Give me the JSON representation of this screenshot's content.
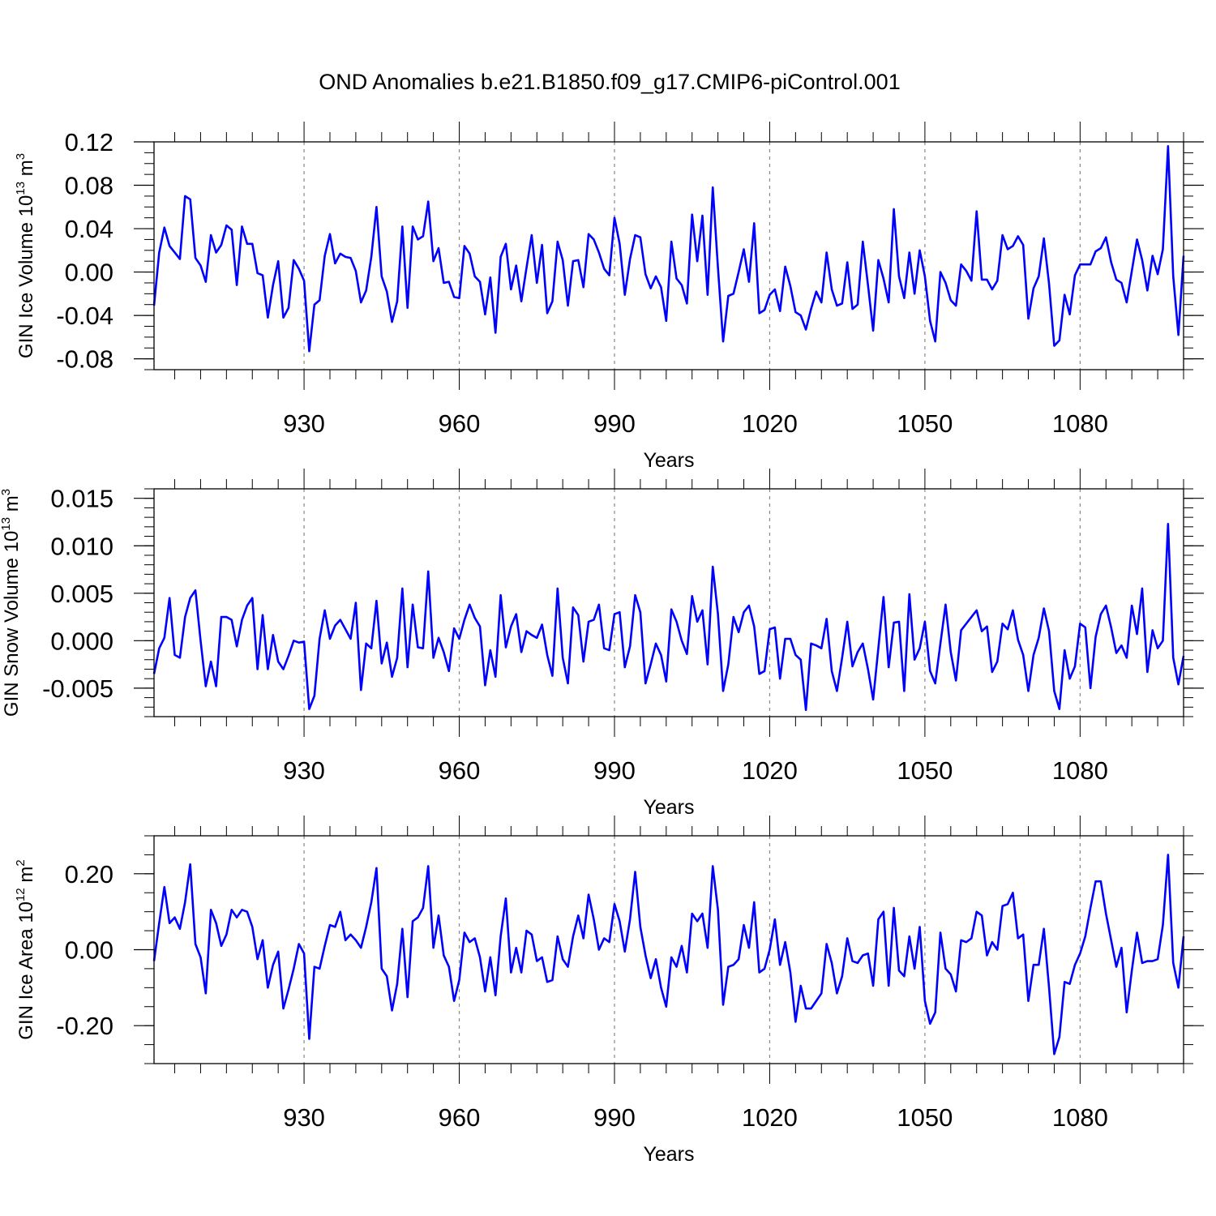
{
  "title": "OND Anomalies b.e21.B1850.f09_g17.CMIP6-piControl.001",
  "colors": {
    "line": "#0000ff",
    "grid": "#888888",
    "axes": "#000000"
  },
  "chart_data": [
    {
      "type": "line",
      "title": "OND Anomalies b.e21.B1850.f09_g17.CMIP6-piControl.001",
      "xlabel": "Years",
      "ylabel": {
        "main": "GIN Ice Volume 10",
        "sup": "13",
        "unit": " m",
        "unit_sup": "3"
      },
      "x_start": 901,
      "xlim": [
        901,
        1100
      ],
      "ylim": [
        -0.09,
        0.12
      ],
      "xticks": [
        930,
        960,
        990,
        1020,
        1050,
        1080
      ],
      "xtick_labels": [
        "930",
        "960",
        "990",
        "1020",
        "1050",
        "1080"
      ],
      "yticks": [
        -0.08,
        -0.04,
        0.0,
        0.04,
        0.08,
        0.12
      ],
      "ytick_labels": [
        "-0.08",
        "-0.04",
        "0.00",
        "0.04",
        "0.08",
        "0.12"
      ],
      "yminor": 0.01,
      "values": [
        -0.031,
        0.018,
        0.041,
        0.024,
        0.018,
        0.012,
        0.07,
        0.067,
        0.013,
        0.006,
        -0.009,
        0.034,
        0.018,
        0.025,
        0.043,
        0.039,
        -0.012,
        0.042,
        0.026,
        0.026,
        -0.001,
        -0.003,
        -0.042,
        -0.012,
        0.01,
        -0.042,
        -0.033,
        0.011,
        0.003,
        -0.008,
        -0.073,
        -0.03,
        -0.026,
        0.015,
        0.035,
        0.008,
        0.017,
        0.014,
        0.013,
        0.001,
        -0.028,
        -0.017,
        0.014,
        0.06,
        -0.004,
        -0.018,
        -0.046,
        -0.027,
        0.042,
        -0.033,
        0.042,
        0.03,
        0.033,
        0.065,
        0.01,
        0.022,
        -0.01,
        -0.009,
        -0.023,
        -0.024,
        0.024,
        0.017,
        -0.004,
        -0.009,
        -0.039,
        -0.005,
        -0.056,
        0.014,
        0.026,
        -0.016,
        0.006,
        -0.027,
        0.004,
        0.034,
        -0.01,
        0.025,
        -0.038,
        -0.027,
        0.028,
        0.011,
        -0.031,
        0.01,
        0.011,
        -0.014,
        0.035,
        0.03,
        0.018,
        0.003,
        -0.003,
        0.05,
        0.026,
        -0.021,
        0.012,
        0.034,
        0.032,
        -0.002,
        -0.015,
        -0.004,
        -0.014,
        -0.045,
        0.028,
        -0.006,
        -0.012,
        -0.029,
        0.053,
        0.01,
        0.052,
        -0.021,
        0.078,
        0.004,
        -0.064,
        -0.022,
        -0.02,
        0.0,
        0.021,
        -0.009,
        0.045,
        -0.038,
        -0.035,
        -0.021,
        -0.016,
        -0.036,
        0.005,
        -0.013,
        -0.037,
        -0.04,
        -0.053,
        -0.034,
        -0.018,
        -0.028,
        0.018,
        -0.016,
        -0.031,
        -0.029,
        0.009,
        -0.034,
        -0.03,
        0.028,
        -0.012,
        -0.054,
        0.011,
        -0.006,
        -0.028,
        0.058,
        -0.004,
        -0.024,
        0.018,
        -0.02,
        0.02,
        -0.004,
        -0.045,
        -0.064,
        0.0,
        -0.01,
        -0.026,
        -0.031,
        0.007,
        0.001,
        -0.008,
        0.056,
        -0.007,
        -0.007,
        -0.016,
        -0.008,
        0.034,
        0.021,
        0.024,
        0.033,
        0.025,
        -0.043,
        -0.015,
        -0.004,
        0.031,
        -0.011,
        -0.068,
        -0.063,
        -0.021,
        -0.039,
        -0.003,
        0.007,
        0.007,
        0.007,
        0.019,
        0.022,
        0.032,
        0.009,
        -0.007,
        -0.01,
        -0.028,
        0.001,
        0.03,
        0.011,
        -0.017,
        0.015,
        -0.002,
        0.021,
        0.116,
        -0.004,
        -0.058,
        0.015
      ]
    },
    {
      "type": "line",
      "xlabel": "Years",
      "ylabel": {
        "main": "GIN Snow Volume 10",
        "sup": "13",
        "unit": " m",
        "unit_sup": "3"
      },
      "x_start": 901,
      "xlim": [
        901,
        1100
      ],
      "ylim": [
        -0.008,
        0.016
      ],
      "xticks": [
        930,
        960,
        990,
        1020,
        1050,
        1080
      ],
      "xtick_labels": [
        "930",
        "960",
        "990",
        "1020",
        "1050",
        "1080"
      ],
      "yticks": [
        -0.005,
        0.0,
        0.005,
        0.01,
        0.015
      ],
      "ytick_labels": [
        "-0.005",
        "0.000",
        "0.005",
        "0.010",
        "0.015"
      ],
      "yminor": 0.001,
      "values": [
        -0.0035,
        -0.0008,
        0.0003,
        0.0045,
        -0.0015,
        -0.0018,
        0.0025,
        0.0045,
        0.0053,
        0.0,
        -0.0048,
        -0.0022,
        -0.0048,
        0.0025,
        0.0025,
        0.0022,
        -0.0006,
        0.0022,
        0.0037,
        0.0045,
        -0.003,
        0.0027,
        -0.003,
        0.0006,
        -0.0022,
        -0.003,
        -0.0016,
        0.0,
        -0.0002,
        -0.0001,
        -0.0072,
        -0.0058,
        0.0002,
        0.0032,
        0.0002,
        0.0016,
        0.0022,
        0.0012,
        0.0002,
        0.004,
        -0.0052,
        -0.0003,
        -0.0008,
        0.0042,
        -0.0024,
        -0.0002,
        -0.0038,
        -0.0018,
        0.0055,
        -0.0028,
        0.0038,
        -0.0007,
        -0.0008,
        0.0073,
        -0.0018,
        0.0003,
        -0.0012,
        -0.0032,
        0.0013,
        0.0002,
        0.0022,
        0.0038,
        0.0024,
        0.0015,
        -0.0047,
        -0.001,
        -0.0038,
        0.0048,
        -0.0007,
        0.0015,
        0.0028,
        -0.0012,
        0.001,
        0.0006,
        0.0003,
        0.0017,
        -0.0015,
        -0.0037,
        0.0055,
        -0.0018,
        -0.0045,
        0.0035,
        0.0027,
        -0.0022,
        0.002,
        0.0022,
        0.0038,
        -0.0008,
        -0.001,
        0.0028,
        0.003,
        -0.0028,
        -0.0006,
        0.0048,
        0.003,
        -0.0045,
        -0.0025,
        -0.0003,
        -0.0015,
        -0.0043,
        0.0033,
        0.002,
        0.0,
        -0.0014,
        0.0047,
        0.002,
        0.0032,
        -0.0025,
        0.0078,
        0.0028,
        -0.0053,
        -0.0025,
        0.0025,
        0.0009,
        0.003,
        0.0037,
        0.0015,
        -0.0035,
        -0.0032,
        0.0012,
        0.0014,
        -0.004,
        0.0002,
        0.0002,
        -0.0015,
        -0.002,
        -0.0073,
        -0.0003,
        -0.0005,
        -0.0008,
        0.0023,
        -0.0032,
        -0.0053,
        -0.0018,
        0.002,
        -0.0027,
        -0.0012,
        -0.0003,
        -0.003,
        -0.0062,
        -0.0008,
        0.0046,
        -0.0028,
        0.0019,
        0.002,
        -0.0053,
        0.0049,
        -0.002,
        -0.0008,
        0.002,
        -0.0032,
        -0.0045,
        -0.0003,
        0.0038,
        -0.0012,
        -0.0042,
        0.0011,
        0.0018,
        0.0025,
        0.0032,
        0.001,
        0.0015,
        -0.0033,
        -0.0022,
        0.0018,
        0.0012,
        0.0032,
        0.0001,
        -0.0015,
        -0.0053,
        -0.0015,
        0.0003,
        0.0034,
        0.001,
        -0.0053,
        -0.0072,
        -0.001,
        -0.004,
        -0.0027,
        0.0018,
        0.0014,
        -0.005,
        0.0004,
        0.0028,
        0.0037,
        0.0014,
        -0.0013,
        -0.0005,
        -0.0018,
        0.0037,
        0.0007,
        0.0055,
        -0.0033,
        0.0011,
        -0.0008,
        0.0,
        0.0123,
        -0.0018,
        -0.0046,
        -0.0016
      ]
    },
    {
      "type": "line",
      "xlabel": "Years",
      "ylabel": {
        "main": "GIN Ice Area 10",
        "sup": "12",
        "unit": " m",
        "unit_sup": "2"
      },
      "x_start": 901,
      "xlim": [
        901,
        1100
      ],
      "ylim": [
        -0.3,
        0.3
      ],
      "xticks": [
        930,
        960,
        990,
        1020,
        1050,
        1080
      ],
      "xtick_labels": [
        "930",
        "960",
        "990",
        "1020",
        "1050",
        "1080"
      ],
      "yticks": [
        -0.2,
        0.0,
        0.2
      ],
      "ytick_labels": [
        "-0.20",
        "0.00",
        "0.20"
      ],
      "yminor": 0.05,
      "values": [
        -0.03,
        0.07,
        0.165,
        0.07,
        0.085,
        0.055,
        0.125,
        0.225,
        0.015,
        -0.02,
        -0.115,
        0.105,
        0.07,
        0.01,
        0.04,
        0.105,
        0.085,
        0.105,
        0.1,
        0.06,
        -0.025,
        0.025,
        -0.1,
        -0.04,
        -0.005,
        -0.155,
        -0.105,
        -0.05,
        0.015,
        -0.01,
        -0.235,
        -0.045,
        -0.05,
        0.01,
        0.065,
        0.06,
        0.1,
        0.025,
        0.04,
        0.025,
        0.005,
        0.06,
        0.125,
        0.215,
        -0.05,
        -0.07,
        -0.16,
        -0.09,
        0.055,
        -0.125,
        0.075,
        0.085,
        0.11,
        0.22,
        0.005,
        0.09,
        -0.015,
        -0.045,
        -0.135,
        -0.08,
        0.045,
        0.02,
        0.03,
        -0.02,
        -0.11,
        -0.02,
        -0.12,
        0.035,
        0.135,
        -0.06,
        0.005,
        -0.06,
        0.05,
        0.04,
        -0.03,
        -0.02,
        -0.085,
        -0.08,
        0.035,
        -0.025,
        -0.045,
        0.035,
        0.09,
        0.03,
        0.145,
        0.08,
        0.0,
        0.03,
        0.02,
        0.12,
        0.075,
        -0.005,
        0.08,
        0.205,
        0.06,
        -0.015,
        -0.075,
        -0.025,
        -0.1,
        -0.15,
        -0.02,
        -0.045,
        0.01,
        -0.06,
        0.095,
        0.075,
        0.095,
        0.005,
        0.22,
        0.105,
        -0.145,
        -0.045,
        -0.04,
        -0.025,
        0.065,
        0.005,
        0.125,
        -0.06,
        -0.05,
        0.0,
        0.08,
        -0.04,
        0.02,
        -0.06,
        -0.19,
        -0.095,
        -0.155,
        -0.155,
        -0.135,
        -0.115,
        0.015,
        -0.035,
        -0.115,
        -0.07,
        0.03,
        -0.03,
        -0.035,
        -0.015,
        -0.01,
        -0.095,
        0.08,
        0.1,
        -0.095,
        0.11,
        -0.055,
        -0.07,
        0.035,
        -0.05,
        0.06,
        -0.135,
        -0.195,
        -0.165,
        0.045,
        -0.05,
        -0.065,
        -0.11,
        0.025,
        0.02,
        0.03,
        0.1,
        0.09,
        -0.015,
        0.02,
        0.0,
        0.115,
        0.12,
        0.15,
        0.03,
        0.04,
        -0.135,
        -0.04,
        -0.04,
        0.055,
        -0.1,
        -0.275,
        -0.23,
        -0.085,
        -0.09,
        -0.04,
        -0.01,
        0.035,
        0.11,
        0.18,
        0.18,
        0.095,
        0.025,
        -0.045,
        0.005,
        -0.165,
        -0.055,
        0.045,
        -0.035,
        -0.03,
        -0.03,
        -0.025,
        0.065,
        0.25,
        -0.035,
        -0.1,
        0.035
      ]
    }
  ]
}
